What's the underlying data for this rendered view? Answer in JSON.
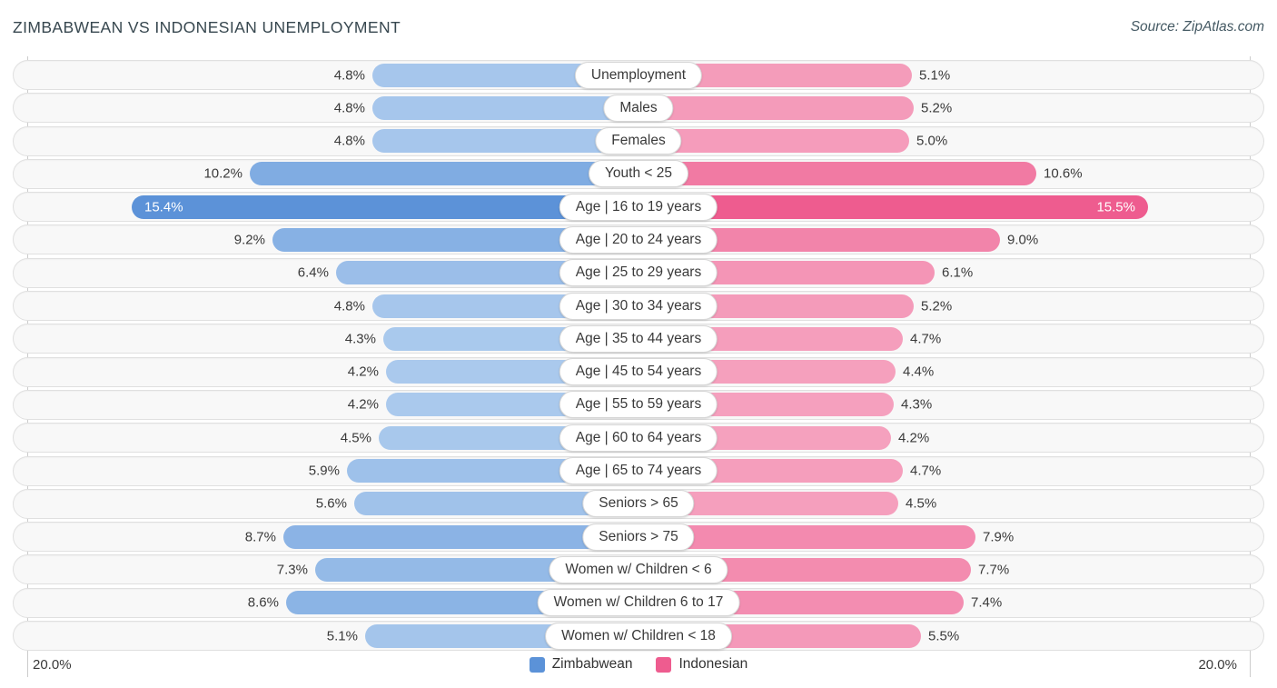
{
  "header": {
    "title": "ZIMBABWEAN VS INDONESIAN UNEMPLOYMENT",
    "source": "Source: ZipAtlas.com"
  },
  "chart_data": {
    "type": "bar",
    "variant": "bidirectional-tornado",
    "categories": [
      "Unemployment",
      "Males",
      "Females",
      "Youth < 25",
      "Age | 16 to 19 years",
      "Age | 20 to 24 years",
      "Age | 25 to 29 years",
      "Age | 30 to 34 years",
      "Age | 35 to 44 years",
      "Age | 45 to 54 years",
      "Age | 55 to 59 years",
      "Age | 60 to 64 years",
      "Age | 65 to 74 years",
      "Seniors > 65",
      "Seniors > 75",
      "Women w/ Children < 6",
      "Women w/ Children 6 to 17",
      "Women w/ Children < 18"
    ],
    "series": [
      {
        "name": "Zimbabwean",
        "side": "left",
        "values": [
          4.8,
          4.8,
          4.8,
          10.2,
          15.4,
          9.2,
          6.4,
          4.8,
          4.3,
          4.2,
          4.2,
          4.5,
          5.9,
          5.6,
          8.7,
          7.3,
          8.6,
          5.1
        ],
        "labels": [
          "4.8%",
          "4.8%",
          "4.8%",
          "10.2%",
          "15.4%",
          "9.2%",
          "6.4%",
          "4.8%",
          "4.3%",
          "4.2%",
          "4.2%",
          "4.5%",
          "5.9%",
          "5.6%",
          "8.7%",
          "7.3%",
          "8.6%",
          "5.1%"
        ],
        "color_light": "#aac9ed",
        "color_dark": "#5b92d8"
      },
      {
        "name": "Indonesian",
        "side": "right",
        "values": [
          5.1,
          5.2,
          5.0,
          10.6,
          15.5,
          9.0,
          6.1,
          5.2,
          4.7,
          4.4,
          4.3,
          4.2,
          4.7,
          4.5,
          7.9,
          7.7,
          7.4,
          5.5
        ],
        "labels": [
          "5.1%",
          "5.2%",
          "5.0%",
          "10.6%",
          "15.5%",
          "9.0%",
          "6.1%",
          "5.2%",
          "4.7%",
          "4.4%",
          "4.3%",
          "4.2%",
          "4.7%",
          "4.5%",
          "7.9%",
          "7.7%",
          "7.4%",
          "5.5%"
        ],
        "color_light": "#f5a1be",
        "color_dark": "#ee5c8f"
      }
    ],
    "axis": {
      "max": 20.0,
      "left_label": "20.0%",
      "right_label": "20.0%"
    },
    "legend": [
      {
        "label": "Zimbabwean",
        "color": "#5b92d8"
      },
      {
        "label": "Indonesian",
        "color": "#ee5c8f"
      }
    ],
    "value_suffix": "%",
    "color_scale": {
      "value_min": 4.2,
      "value_max": 15.5
    }
  }
}
